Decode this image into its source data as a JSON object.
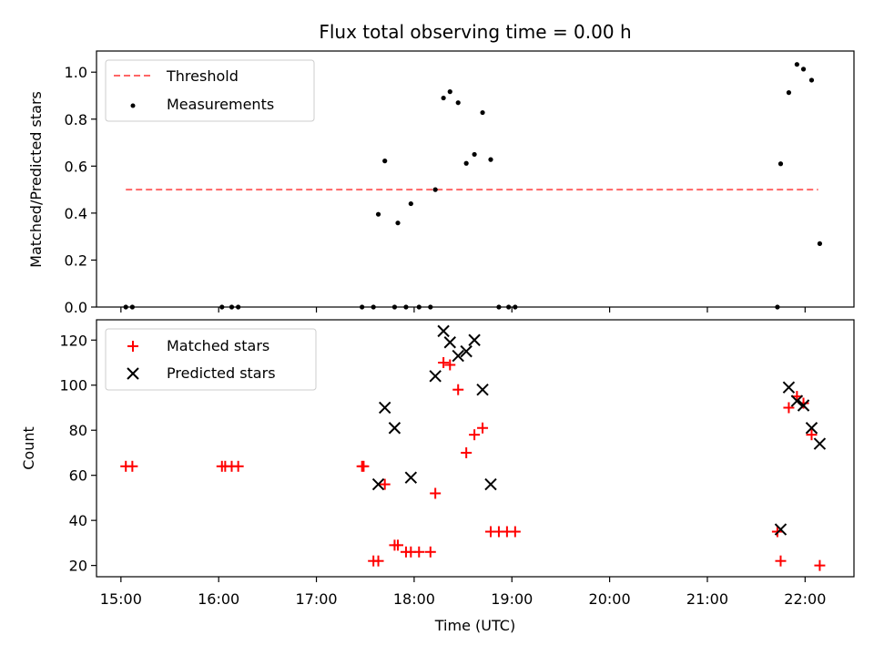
{
  "chart_data": {
    "title": "Flux total observing time = 0.00 h",
    "xlabel": "Time (UTC)",
    "xlim": [
      "14:45",
      "22:30"
    ],
    "xticks": [
      "15:00",
      "16:00",
      "17:00",
      "18:00",
      "19:00",
      "20:00",
      "21:00",
      "22:00"
    ],
    "panels": [
      {
        "type": "scatter",
        "ylabel": "Matched/Predicted stars",
        "ylim": [
          0,
          1.09
        ],
        "yticks": [
          "0.0",
          "0.2",
          "0.4",
          "0.6",
          "0.8",
          "1.0"
        ],
        "legend": "top-left",
        "threshold": {
          "name": "Threshold",
          "value": 0.5,
          "x_range": [
            "15:03",
            "22:08"
          ],
          "color": "#ff6666",
          "style": "dashed"
        },
        "series": [
          {
            "name": "Measurements",
            "color": "#000000",
            "marker": "dot",
            "points": [
              [
                "15:03",
                0.0
              ],
              [
                "15:07",
                0.0
              ],
              [
                "16:02",
                0.0
              ],
              [
                "16:08",
                0.0
              ],
              [
                "16:12",
                0.0
              ],
              [
                "17:28",
                0.0
              ],
              [
                "17:35",
                0.0
              ],
              [
                "17:38",
                0.395
              ],
              [
                "17:42",
                0.622
              ],
              [
                "17:48",
                0.0
              ],
              [
                "17:50",
                0.358
              ],
              [
                "17:55",
                0.0
              ],
              [
                "17:58",
                0.44
              ],
              [
                "18:03",
                0.0
              ],
              [
                "18:10",
                0.0
              ],
              [
                "18:13",
                0.5
              ],
              [
                "18:18",
                0.89
              ],
              [
                "18:22",
                0.917
              ],
              [
                "18:27",
                0.87
              ],
              [
                "18:32",
                0.612
              ],
              [
                "18:37",
                0.65
              ],
              [
                "18:42",
                0.828
              ],
              [
                "18:47",
                0.628
              ],
              [
                "18:52",
                0.0
              ],
              [
                "18:58",
                0.0
              ],
              [
                "19:02",
                0.0
              ],
              [
                "21:43",
                0.0
              ],
              [
                "21:45",
                0.61
              ],
              [
                "21:50",
                0.913
              ],
              [
                "21:55",
                1.033
              ],
              [
                "21:59",
                1.013
              ],
              [
                "22:04",
                0.966
              ],
              [
                "22:09",
                0.27
              ]
            ]
          }
        ]
      },
      {
        "type": "scatter",
        "ylabel": "Count",
        "ylim": [
          15,
          129
        ],
        "yticks": [
          "20",
          "40",
          "60",
          "80",
          "100",
          "120"
        ],
        "legend": "top-left",
        "series": [
          {
            "name": "Matched stars",
            "color": "#ff0000",
            "marker": "plus",
            "points": [
              [
                "15:03",
                64
              ],
              [
                "15:07",
                64
              ],
              [
                "16:02",
                64
              ],
              [
                "16:04",
                64
              ],
              [
                "16:08",
                64
              ],
              [
                "16:12",
                64
              ],
              [
                "17:28",
                64
              ],
              [
                "17:29",
                64
              ],
              [
                "17:35",
                22
              ],
              [
                "17:38",
                22
              ],
              [
                "17:42",
                56
              ],
              [
                "17:48",
                29
              ],
              [
                "17:50",
                29
              ],
              [
                "17:55",
                26
              ],
              [
                "17:58",
                26
              ],
              [
                "18:03",
                26
              ],
              [
                "18:10",
                26
              ],
              [
                "18:13",
                52
              ],
              [
                "18:18",
                110
              ],
              [
                "18:22",
                109
              ],
              [
                "18:27",
                98
              ],
              [
                "18:32",
                70
              ],
              [
                "18:37",
                78
              ],
              [
                "18:42",
                81
              ],
              [
                "18:47",
                35
              ],
              [
                "18:52",
                35
              ],
              [
                "18:57",
                35
              ],
              [
                "19:02",
                35
              ],
              [
                "21:43",
                35
              ],
              [
                "21:45",
                22
              ],
              [
                "21:50",
                90
              ],
              [
                "21:55",
                95
              ],
              [
                "21:59",
                92
              ],
              [
                "22:04",
                78
              ],
              [
                "22:09",
                20
              ]
            ]
          },
          {
            "name": "Predicted stars",
            "color": "#000000",
            "marker": "x",
            "points": [
              [
                "17:38",
                56
              ],
              [
                "17:42",
                90
              ],
              [
                "17:48",
                81
              ],
              [
                "17:58",
                59
              ],
              [
                "18:13",
                104
              ],
              [
                "18:18",
                124
              ],
              [
                "18:22",
                119
              ],
              [
                "18:27",
                113
              ],
              [
                "18:32",
                115
              ],
              [
                "18:37",
                120
              ],
              [
                "18:42",
                98
              ],
              [
                "18:47",
                56
              ],
              [
                "21:45",
                36
              ],
              [
                "21:50",
                99
              ],
              [
                "21:55",
                93
              ],
              [
                "21:59",
                91
              ],
              [
                "22:04",
                81
              ],
              [
                "22:09",
                74
              ]
            ]
          }
        ]
      }
    ]
  }
}
